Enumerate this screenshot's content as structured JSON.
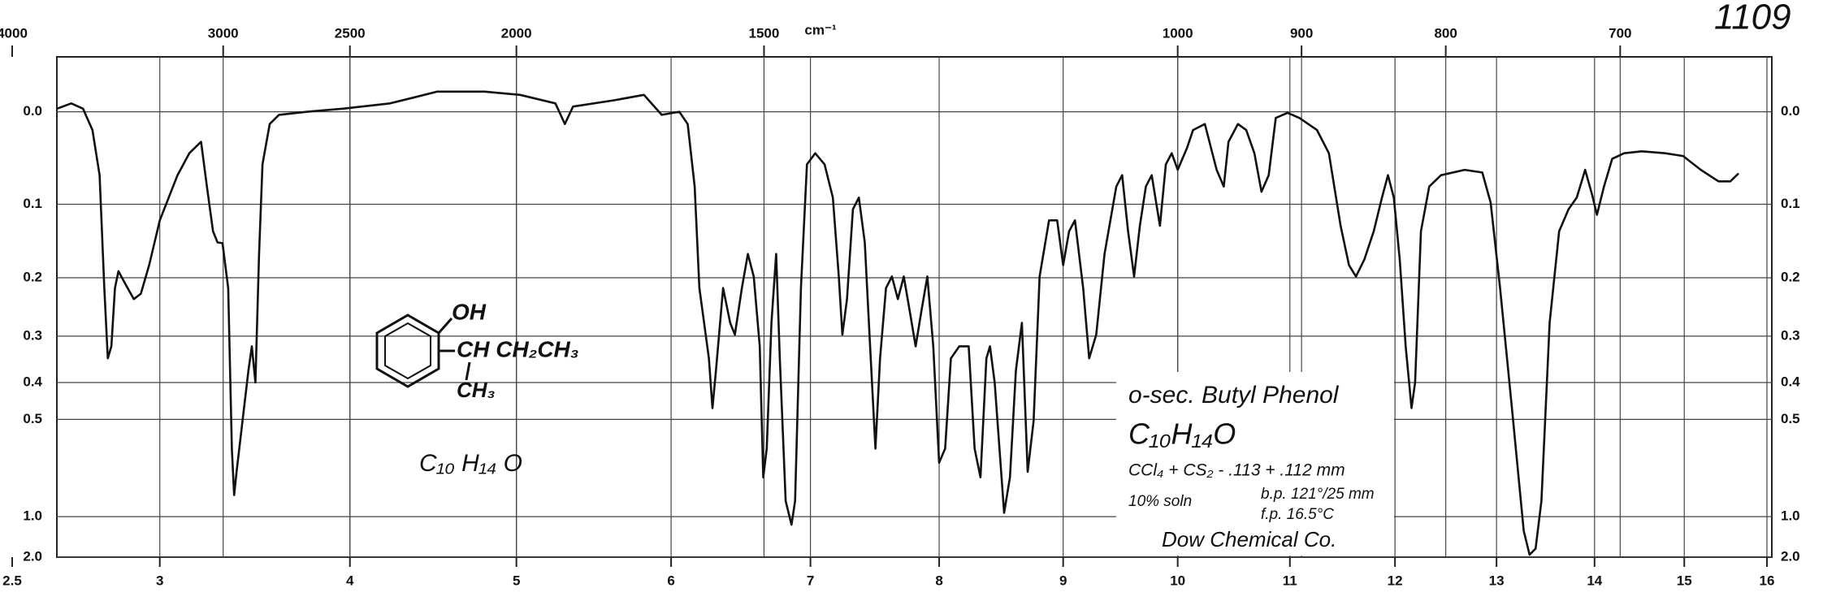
{
  "chart_data": {
    "type": "line",
    "color": "#111111",
    "y_scale": "absorbance",
    "grid": true,
    "xlim": [
      2.5,
      16
    ],
    "xticks": [
      2.5,
      3,
      4,
      5,
      6,
      7,
      8,
      9,
      10,
      11,
      12,
      13,
      14,
      15,
      16
    ],
    "x2ticks": [
      4000,
      3000,
      2500,
      2000,
      1500,
      1000,
      900,
      800,
      700
    ],
    "x2_label": "cm⁻¹",
    "ylim": [
      -0.05,
      2
    ],
    "yticks": [
      {
        "value": 0,
        "label": "0.0"
      },
      0.1,
      0.2,
      0.3,
      0.4,
      0.5,
      {
        "value": 1,
        "label": "1.0"
      },
      {
        "value": 2,
        "label": "2.0"
      }
    ],
    "x": [
      2.652,
      2.7,
      2.74,
      2.772,
      2.796,
      2.812,
      2.824,
      2.836,
      2.848,
      2.86,
      2.884,
      2.912,
      2.936,
      2.964,
      3.0,
      3.093,
      3.155,
      3.217,
      3.248,
      3.28,
      3.304,
      3.33,
      3.36,
      3.379,
      3.391,
      3.404,
      3.435,
      3.466,
      3.484,
      3.503,
      3.522,
      3.54,
      3.578,
      3.627,
      3.776,
      3.963,
      4.241,
      4.525,
      4.809,
      5.023,
      5.252,
      5.313,
      5.366,
      5.634,
      5.824,
      5.939,
      6.059,
      6.119,
      6.169,
      6.203,
      6.237,
      6.271,
      6.297,
      6.322,
      6.373,
      6.424,
      6.458,
      6.508,
      6.551,
      6.593,
      6.636,
      6.661,
      6.686,
      6.72,
      6.754,
      6.78,
      6.822,
      6.864,
      6.89,
      6.932,
      6.975,
      7.037,
      7.11,
      7.174,
      7.22,
      7.248,
      7.284,
      7.33,
      7.376,
      7.422,
      7.459,
      7.505,
      7.541,
      7.587,
      7.633,
      7.679,
      7.725,
      7.771,
      7.817,
      7.862,
      7.908,
      7.954,
      8.0,
      8.048,
      8.095,
      8.162,
      8.238,
      8.286,
      8.333,
      8.381,
      8.41,
      8.448,
      8.524,
      8.571,
      8.619,
      8.667,
      8.714,
      8.762,
      8.81,
      8.886,
      8.952,
      9.0,
      9.052,
      9.103,
      9.175,
      9.227,
      9.289,
      9.361,
      9.464,
      9.515,
      9.567,
      9.619,
      9.67,
      9.722,
      9.773,
      9.845,
      9.897,
      9.948,
      10.0,
      10.084,
      10.137,
      10.242,
      10.347,
      10.411,
      10.453,
      10.537,
      10.611,
      10.684,
      10.747,
      10.811,
      10.874,
      10.979,
      11.09,
      11.258,
      11.371,
      11.483,
      11.562,
      11.629,
      11.708,
      11.798,
      11.876,
      11.933,
      11.989,
      12.047,
      12.105,
      12.163,
      12.198,
      12.256,
      12.337,
      12.453,
      12.686,
      12.86,
      12.942,
      13.036,
      13.157,
      13.277,
      13.337,
      13.398,
      13.458,
      13.542,
      13.639,
      13.735,
      13.819,
      13.904,
      13.976,
      14.026,
      14.105,
      14.197,
      14.329,
      14.526,
      14.789,
      14.987,
      15.2,
      15.414,
      15.557,
      15.657
    ],
    "values": [
      -0.003,
      -0.008,
      -0.003,
      0.018,
      0.066,
      0.216,
      0.345,
      0.32,
      0.216,
      0.19,
      0.21,
      0.234,
      0.225,
      0.181,
      0.12,
      0.066,
      0.042,
      0.03,
      0.079,
      0.134,
      0.149,
      0.15,
      0.216,
      0.6,
      0.83,
      0.7,
      0.505,
      0.372,
      0.32,
      0.4,
      0.165,
      0.054,
      0.012,
      0.003,
      0.0,
      -0.003,
      -0.008,
      -0.019,
      -0.019,
      -0.016,
      -0.008,
      0.012,
      -0.005,
      -0.011,
      -0.016,
      0.003,
      0.0,
      0.012,
      0.079,
      0.216,
      0.275,
      0.345,
      0.467,
      0.372,
      0.216,
      0.275,
      0.297,
      0.216,
      0.165,
      0.198,
      0.32,
      0.727,
      0.6,
      0.275,
      0.165,
      0.345,
      0.87,
      1.086,
      0.87,
      0.216,
      0.054,
      0.042,
      0.054,
      0.092,
      0.198,
      0.297,
      0.234,
      0.106,
      0.092,
      0.149,
      0.297,
      0.6,
      0.345,
      0.216,
      0.198,
      0.234,
      0.198,
      0.254,
      0.32,
      0.254,
      0.198,
      0.32,
      0.658,
      0.6,
      0.345,
      0.32,
      0.32,
      0.6,
      0.727,
      0.345,
      0.32,
      0.4,
      0.964,
      0.727,
      0.372,
      0.275,
      0.7,
      0.505,
      0.198,
      0.12,
      0.12,
      0.181,
      0.134,
      0.12,
      0.216,
      0.345,
      0.297,
      0.165,
      0.079,
      0.066,
      0.134,
      0.198,
      0.127,
      0.079,
      0.066,
      0.127,
      0.054,
      0.042,
      0.06,
      0.036,
      0.018,
      0.012,
      0.06,
      0.079,
      0.03,
      0.012,
      0.018,
      0.042,
      0.085,
      0.066,
      0.006,
      0.001,
      0.006,
      0.018,
      0.042,
      0.127,
      0.181,
      0.198,
      0.173,
      0.134,
      0.092,
      0.066,
      0.092,
      0.173,
      0.32,
      0.467,
      0.4,
      0.134,
      0.079,
      0.066,
      0.06,
      0.063,
      0.098,
      0.216,
      0.467,
      1.163,
      1.81,
      1.54,
      0.87,
      0.275,
      0.134,
      0.106,
      0.092,
      0.06,
      0.089,
      0.113,
      0.079,
      0.048,
      0.042,
      0.04,
      0.042,
      0.045,
      0.06,
      0.073,
      0.073,
      0.064
    ]
  },
  "annotations": {
    "sheet_number": "1109",
    "structure_oh": "OH",
    "structure_chain": "CH CH₂CH₃",
    "structure_methyl": "CH₃",
    "formula_sketch": "C₁₀ H₁₄ O",
    "compound": "o-sec. Butyl Phenol",
    "formula": "C₁₀H₁₄O",
    "cell": "CCl₄ + CS₂ - .113 + .112 mm",
    "solution": "10% soln",
    "boiling_point": "b.p. 121°/25 mm",
    "freezing_point": "f.p. 16.5°C",
    "source": "Dow Chemical Co."
  }
}
